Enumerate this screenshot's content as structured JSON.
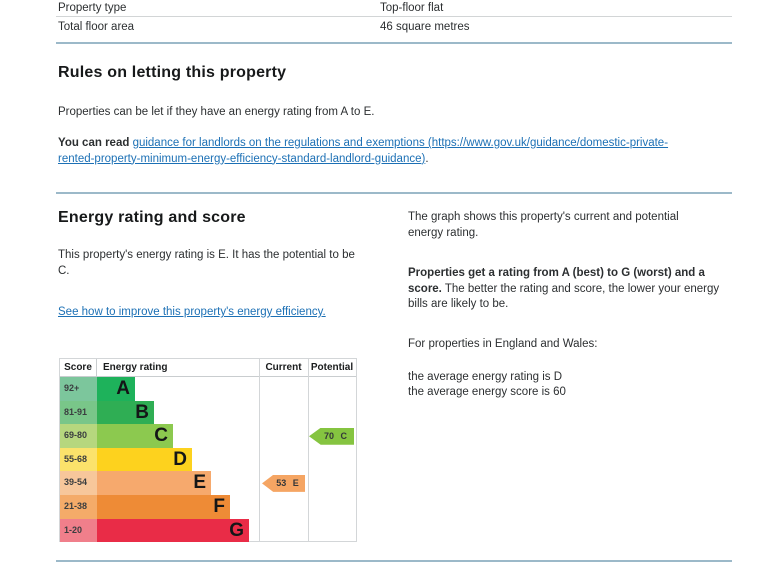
{
  "theme": {
    "link_color": "#1c70b5",
    "section_divider_color": "#9cb9c9",
    "text_color": "#2c2f31"
  },
  "property_table": {
    "rows": [
      {
        "label": "Property type",
        "value": "Top-floor flat"
      },
      {
        "label": "Total floor area",
        "value": "46 square metres"
      }
    ]
  },
  "rules": {
    "heading": "Rules on letting this property",
    "intro": "Properties can be let if they have an energy rating from A to E.",
    "read_prefix": "You can read ",
    "landlord_link": "guidance for landlords on the regulations and exemptions (https://www.gov.uk/guidance/domestic-private-rented-property-minimum-energy-efficiency-standard-landlord-guidance)",
    "suffix": "."
  },
  "rating": {
    "heading": "Energy rating and score",
    "summary": "This property's energy rating is E. It has the potential to be C.",
    "improve_link": "See how to improve this property's energy efficiency.",
    "graph_intro": "The graph shows this property's current and potential energy rating.",
    "rating_bold": "Properties get a rating from A (best) to G (worst) and a score.",
    "rating_rest": " The better the rating and score, the lower your energy bills are likely to be.",
    "regions_line": "For properties in England and Wales:",
    "average_rating_line": "the average energy rating is D",
    "average_score_line": "the average energy score is 60"
  },
  "chart_data": {
    "type": "epc-energy-rating-bar",
    "headers": {
      "score": "Score",
      "rating": "Energy rating",
      "current": "Current",
      "potential": "Potential"
    },
    "bands": [
      {
        "range": "92+",
        "letter": "A",
        "bar_color": "#1eb25b",
        "tint_color": "#7cc69c"
      },
      {
        "range": "81-91",
        "letter": "B",
        "bar_color": "#2fae54",
        "tint_color": "#79c689"
      },
      {
        "range": "69-80",
        "letter": "C",
        "bar_color": "#8cc94f",
        "tint_color": "#b6d77e"
      },
      {
        "range": "55-68",
        "letter": "D",
        "bar_color": "#fdd21e",
        "tint_color": "#fbe26b"
      },
      {
        "range": "39-54",
        "letter": "E",
        "bar_color": "#f6a96d",
        "tint_color": "#f7c79b"
      },
      {
        "range": "21-38",
        "letter": "F",
        "bar_color": "#ee8b36",
        "tint_color": "#f4ab69"
      },
      {
        "range": "1-20",
        "letter": "G",
        "bar_color": "#e92c47",
        "tint_color": "#f07f8b"
      }
    ],
    "current": {
      "label": "53 E",
      "score": 53,
      "band": "E",
      "color": "#f5a563"
    },
    "potential": {
      "label": "70 C",
      "score": 70,
      "band": "C",
      "color": "#85c440"
    }
  }
}
